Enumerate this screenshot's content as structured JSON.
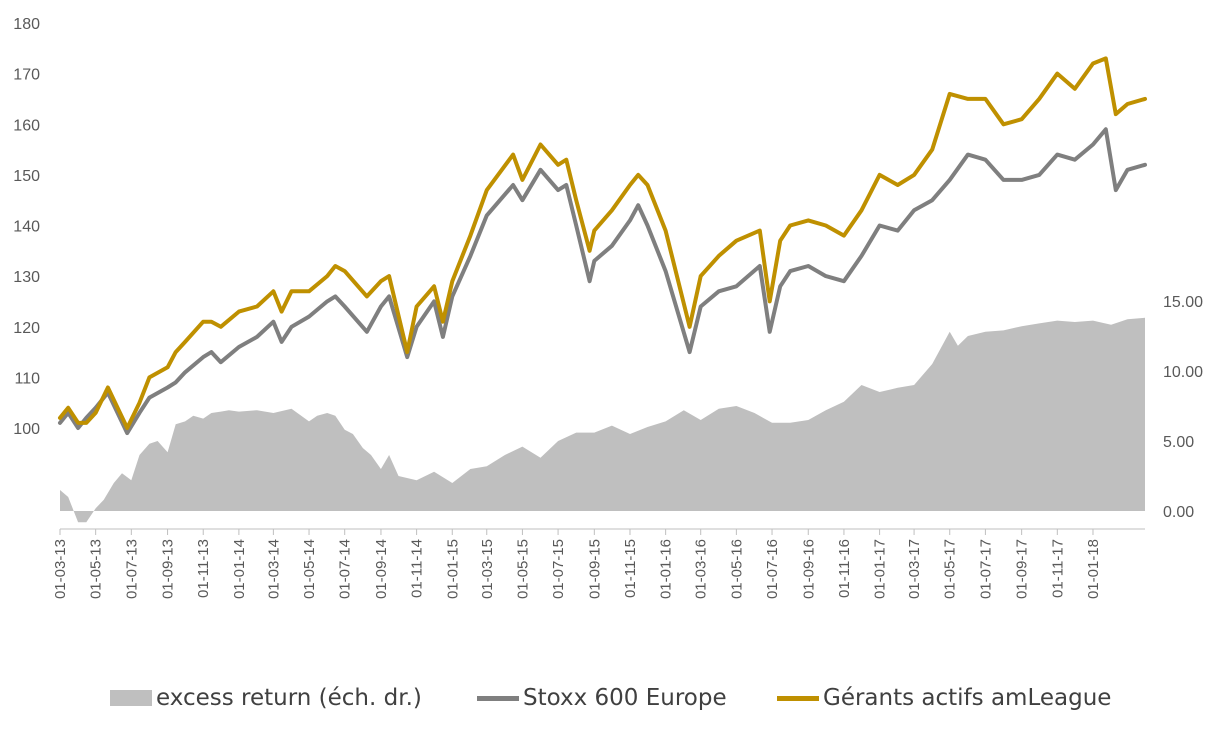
{
  "chart_data": {
    "type": "line",
    "title": "",
    "xlabel": "",
    "ylabel": "",
    "x_tick_labels": [
      "01-03-13",
      "01-05-13",
      "01-07-13",
      "01-09-13",
      "01-11-13",
      "01-01-14",
      "01-03-14",
      "01-05-14",
      "01-07-14",
      "01-09-14",
      "01-11-14",
      "01-01-15",
      "01-03-15",
      "01-05-15",
      "01-07-15",
      "01-09-15",
      "01-11-15",
      "01-01-16",
      "01-03-16",
      "01-05-16",
      "01-07-16",
      "01-09-16",
      "01-11-16",
      "01-01-17",
      "01-03-17",
      "01-05-17",
      "01-07-17",
      "01-09-17",
      "01-11-17",
      "01-01-18"
    ],
    "x_range": [
      "2013-03-01",
      "2018-03-31"
    ],
    "y_left": {
      "ticks": [
        "100",
        "110",
        "120",
        "130",
        "140",
        "150",
        "160",
        "170",
        "180"
      ],
      "ylim": [
        100,
        180
      ]
    },
    "y_right": {
      "ticks": [
        "0.00",
        "5.00",
        "10.00",
        "15.00"
      ],
      "ylim": [
        0,
        15
      ]
    },
    "grid": false,
    "legend_placement": "bottom",
    "series": [
      {
        "name": "excess return (éch. dr.)",
        "kind": "area",
        "axis": "right",
        "color": "#bfbfbf",
        "x": [
          "2013-03-01",
          "2013-03-15",
          "2013-04-01",
          "2013-04-15",
          "2013-05-01",
          "2013-05-15",
          "2013-06-01",
          "2013-06-15",
          "2013-07-01",
          "2013-07-15",
          "2013-08-01",
          "2013-08-15",
          "2013-09-01",
          "2013-09-15",
          "2013-10-01",
          "2013-10-15",
          "2013-11-01",
          "2013-11-15",
          "2013-12-01",
          "2013-12-15",
          "2014-01-01",
          "2014-02-01",
          "2014-03-01",
          "2014-04-01",
          "2014-05-01",
          "2014-05-15",
          "2014-06-01",
          "2014-06-15",
          "2014-07-01",
          "2014-07-15",
          "2014-08-01",
          "2014-08-15",
          "2014-09-01",
          "2014-09-15",
          "2014-10-01",
          "2014-11-01",
          "2014-12-01",
          "2015-01-01",
          "2015-02-01",
          "2015-03-01",
          "2015-04-01",
          "2015-05-01",
          "2015-06-01",
          "2015-07-01",
          "2015-08-01",
          "2015-09-01",
          "2015-10-01",
          "2015-11-01",
          "2015-12-01",
          "2016-01-01",
          "2016-02-01",
          "2016-03-01",
          "2016-04-01",
          "2016-05-01",
          "2016-06-01",
          "2016-07-01",
          "2016-08-01",
          "2016-09-01",
          "2016-10-01",
          "2016-11-01",
          "2016-12-01",
          "2017-01-01",
          "2017-02-01",
          "2017-03-01",
          "2017-04-01",
          "2017-05-01",
          "2017-05-15",
          "2017-06-01",
          "2017-07-01",
          "2017-08-01",
          "2017-09-01",
          "2017-10-01",
          "2017-11-01",
          "2017-12-01",
          "2018-01-01",
          "2018-02-01",
          "2018-03-01",
          "2018-03-31"
        ],
        "values": [
          1.5,
          1.0,
          -0.8,
          -0.8,
          0.2,
          0.8,
          2.0,
          2.7,
          2.2,
          4.0,
          4.8,
          5.0,
          4.2,
          6.2,
          6.4,
          6.8,
          6.6,
          7.0,
          7.1,
          7.2,
          7.1,
          7.2,
          7.0,
          7.3,
          6.4,
          6.8,
          7.0,
          6.8,
          5.8,
          5.5,
          4.5,
          4.0,
          3.0,
          4.0,
          2.5,
          2.2,
          2.8,
          2.0,
          3.0,
          3.2,
          4.0,
          4.6,
          3.8,
          5.0,
          5.6,
          5.6,
          6.1,
          5.5,
          6.0,
          6.4,
          7.2,
          6.5,
          7.3,
          7.5,
          7.0,
          6.3,
          6.3,
          6.5,
          7.2,
          7.8,
          9.0,
          8.5,
          8.8,
          9.0,
          10.5,
          12.8,
          11.8,
          12.5,
          12.8,
          12.9,
          13.2,
          13.4,
          13.6,
          13.5,
          13.6,
          13.3,
          13.7,
          13.8
        ]
      },
      {
        "name": "Stoxx 600 Europe",
        "kind": "line",
        "axis": "left",
        "color": "#7f7f7f",
        "x": [
          "2013-03-01",
          "2013-03-15",
          "2013-04-01",
          "2013-04-15",
          "2013-05-01",
          "2013-05-22",
          "2013-06-24",
          "2013-07-15",
          "2013-08-01",
          "2013-09-01",
          "2013-09-15",
          "2013-10-01",
          "2013-11-01",
          "2013-11-15",
          "2013-12-01",
          "2014-01-01",
          "2014-02-01",
          "2014-03-01",
          "2014-03-15",
          "2014-04-01",
          "2014-05-01",
          "2014-06-01",
          "2014-06-15",
          "2014-07-01",
          "2014-08-08",
          "2014-09-01",
          "2014-09-15",
          "2014-10-16",
          "2014-11-01",
          "2014-12-01",
          "2014-12-16",
          "2015-01-01",
          "2015-02-01",
          "2015-03-01",
          "2015-04-15",
          "2015-05-01",
          "2015-06-01",
          "2015-07-01",
          "2015-07-15",
          "2015-08-01",
          "2015-08-24",
          "2015-09-01",
          "2015-10-01",
          "2015-11-01",
          "2015-11-15",
          "2015-12-01",
          "2016-01-01",
          "2016-02-11",
          "2016-03-01",
          "2016-04-01",
          "2016-05-01",
          "2016-06-10",
          "2016-06-27",
          "2016-07-15",
          "2016-08-01",
          "2016-09-01",
          "2016-10-01",
          "2016-11-01",
          "2016-12-01",
          "2017-01-01",
          "2017-02-01",
          "2017-03-01",
          "2017-04-01",
          "2017-05-01",
          "2017-06-01",
          "2017-07-01",
          "2017-08-01",
          "2017-09-01",
          "2017-10-01",
          "2017-11-01",
          "2017-12-01",
          "2018-01-01",
          "2018-01-23",
          "2018-02-09",
          "2018-03-01",
          "2018-03-31"
        ],
        "values": [
          101,
          103,
          100,
          102,
          104,
          107,
          99,
          103,
          106,
          108,
          109,
          111,
          114,
          115,
          113,
          116,
          118,
          121,
          117,
          120,
          122,
          125,
          126,
          124,
          119,
          124,
          126,
          114,
          120,
          125,
          118,
          126,
          134,
          142,
          148,
          145,
          151,
          147,
          148,
          140,
          129,
          133,
          136,
          141,
          144,
          140,
          131,
          115,
          124,
          127,
          128,
          132,
          119,
          128,
          131,
          132,
          130,
          129,
          134,
          140,
          139,
          143,
          145,
          149,
          154,
          153,
          149,
          149,
          150,
          154,
          153,
          156,
          159,
          147,
          151,
          152
        ]
      },
      {
        "name": "Gérants actifs amLeague",
        "kind": "line",
        "axis": "left",
        "color": "#bf9000",
        "x": [
          "2013-03-01",
          "2013-03-15",
          "2013-04-01",
          "2013-04-15",
          "2013-05-01",
          "2013-05-22",
          "2013-06-24",
          "2013-07-15",
          "2013-08-01",
          "2013-09-01",
          "2013-09-15",
          "2013-10-01",
          "2013-11-01",
          "2013-11-15",
          "2013-12-01",
          "2014-01-01",
          "2014-02-01",
          "2014-03-01",
          "2014-03-15",
          "2014-04-01",
          "2014-05-01",
          "2014-06-01",
          "2014-06-15",
          "2014-07-01",
          "2014-08-08",
          "2014-09-01",
          "2014-09-15",
          "2014-10-16",
          "2014-11-01",
          "2014-12-01",
          "2014-12-16",
          "2015-01-01",
          "2015-02-01",
          "2015-03-01",
          "2015-04-15",
          "2015-05-01",
          "2015-06-01",
          "2015-07-01",
          "2015-07-15",
          "2015-08-01",
          "2015-08-24",
          "2015-09-01",
          "2015-10-01",
          "2015-11-01",
          "2015-11-15",
          "2015-12-01",
          "2016-01-01",
          "2016-02-11",
          "2016-03-01",
          "2016-04-01",
          "2016-05-01",
          "2016-06-10",
          "2016-06-27",
          "2016-07-15",
          "2016-08-01",
          "2016-09-01",
          "2016-10-01",
          "2016-11-01",
          "2016-12-01",
          "2017-01-01",
          "2017-02-01",
          "2017-03-01",
          "2017-04-01",
          "2017-05-01",
          "2017-06-01",
          "2017-07-01",
          "2017-08-01",
          "2017-09-01",
          "2017-10-01",
          "2017-11-01",
          "2017-12-01",
          "2018-01-01",
          "2018-01-23",
          "2018-02-09",
          "2018-03-01",
          "2018-03-31"
        ],
        "values": [
          102,
          104,
          101,
          101,
          103,
          108,
          100,
          105,
          110,
          112,
          115,
          117,
          121,
          121,
          120,
          123,
          124,
          127,
          123,
          127,
          127,
          130,
          132,
          131,
          126,
          129,
          130,
          115,
          124,
          128,
          121,
          129,
          138,
          147,
          154,
          149,
          156,
          152,
          153,
          145,
          135,
          139,
          143,
          148,
          150,
          148,
          139,
          120,
          130,
          134,
          137,
          139,
          125,
          137,
          140,
          141,
          140,
          138,
          143,
          150,
          148,
          150,
          155,
          166,
          165,
          165,
          160,
          161,
          165,
          170,
          167,
          172,
          173,
          162,
          164,
          165
        ]
      }
    ]
  }
}
